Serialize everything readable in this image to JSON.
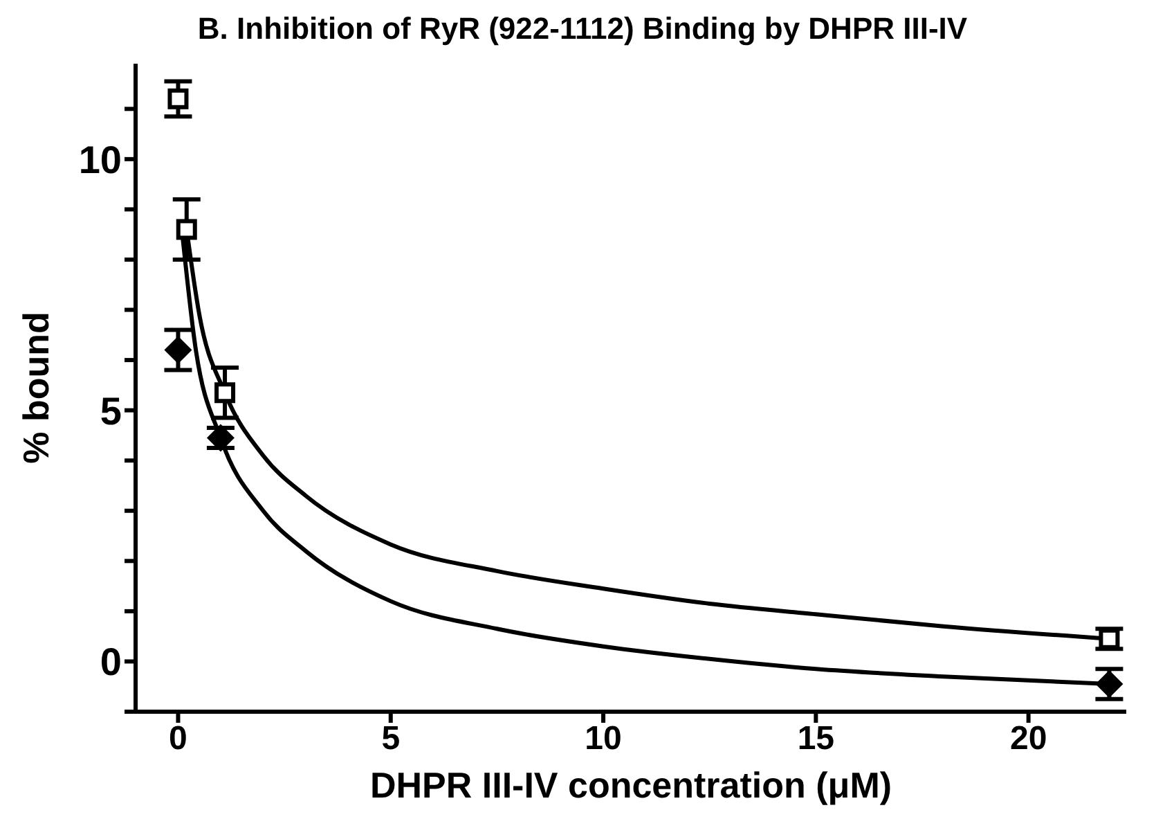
{
  "chart_data": {
    "type": "scatter",
    "title": "B. Inhibition of RyR (922-1112) Binding by DHPR III-IV",
    "xlabel": "DHPR III-IV concentration (μM)",
    "ylabel": "% bound",
    "xlim": [
      -1,
      22.3
    ],
    "xticks": [
      0,
      5,
      10,
      15,
      20
    ],
    "ylim": [
      -1,
      11.9
    ],
    "yticks": [
      {
        "value": -1,
        "label": null
      },
      0,
      {
        "value": 1,
        "label": null
      },
      {
        "value": 2,
        "label": null
      },
      {
        "value": 3,
        "label": null
      },
      {
        "value": 4,
        "label": null
      },
      5,
      {
        "value": 6,
        "label": null
      },
      {
        "value": 7,
        "label": null
      },
      {
        "value": 8,
        "label": null
      },
      {
        "value": 9,
        "label": null
      },
      10,
      {
        "value": 11,
        "label": null
      }
    ],
    "grid": false,
    "legend": false,
    "series": [
      {
        "type": "line",
        "color": "#000000",
        "marker": "none",
        "x": [
          0.2,
          0.5,
          1.1,
          2,
          3,
          5,
          7.5,
          10,
          12.5,
          15,
          18,
          21.9
        ],
        "values": [
          8.6,
          6.9,
          5.35,
          4.1,
          3.3,
          2.33,
          1.8,
          1.45,
          1.15,
          0.94,
          0.7,
          0.45
        ]
      },
      {
        "type": "line",
        "color": "#000000",
        "marker": "none",
        "x": [
          0.1,
          0.4,
          1,
          2,
          3,
          5,
          7.5,
          10,
          12.5,
          15,
          18,
          21.9
        ],
        "values": [
          8.5,
          6.3,
          4.45,
          3.0,
          2.2,
          1.2,
          0.65,
          0.3,
          0.05,
          -0.15,
          -0.3,
          -0.45
        ]
      },
      {
        "type": "scatter",
        "color": "#000000",
        "marker": "square",
        "x": [
          0,
          0.2,
          1.1,
          21.9
        ],
        "values": [
          11.2,
          8.6,
          5.35,
          0.45
        ],
        "errors": [
          0.35,
          0.6,
          0.5,
          0.2
        ]
      },
      {
        "type": "scatter",
        "color": "#000000",
        "marker": "diamond",
        "x": [
          0,
          1,
          21.9
        ],
        "values": [
          6.2,
          4.45,
          -0.45
        ],
        "errors": [
          0.4,
          0.2,
          0.3
        ]
      }
    ]
  }
}
